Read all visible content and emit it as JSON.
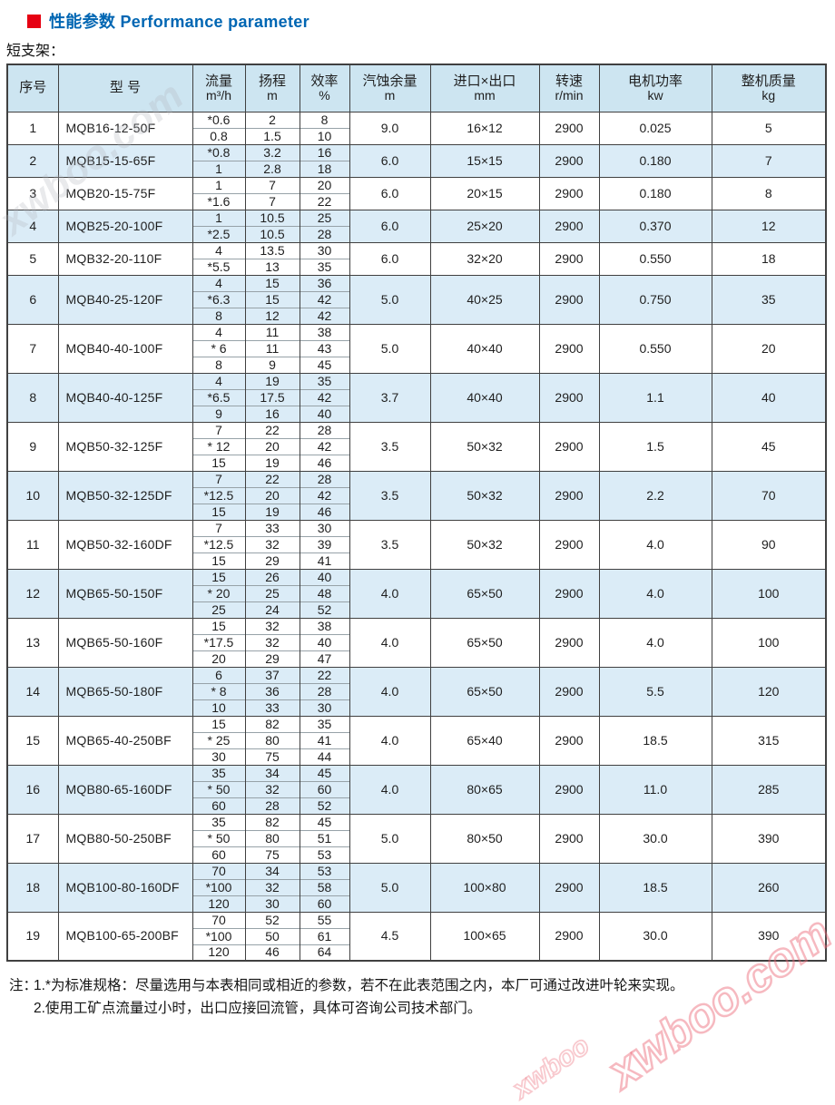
{
  "page": {
    "title": "性能参数 Performance parameter",
    "subtitle": "短支架："
  },
  "colors": {
    "title_blue": "#0066b3",
    "bullet_red": "#e60012",
    "header_bg": "#cde5f1",
    "stripe_blue": "#dbecf7",
    "border_dark": "#404040"
  },
  "watermark": {
    "text": "xwboo.com",
    "text_short": "xwboo"
  },
  "table": {
    "headers": [
      {
        "key": "no",
        "label": "序号",
        "unit": ""
      },
      {
        "key": "model",
        "label": "型  号",
        "unit": ""
      },
      {
        "key": "flow",
        "label": "流量",
        "unit": "m³/h"
      },
      {
        "key": "head",
        "label": "扬程",
        "unit": "m"
      },
      {
        "key": "eff",
        "label": "效率",
        "unit": "%"
      },
      {
        "key": "npsh",
        "label": "汽蚀余量",
        "unit": "m"
      },
      {
        "key": "ports",
        "label": "进口×出口",
        "unit": "mm"
      },
      {
        "key": "speed",
        "label": "转速",
        "unit": "r/min"
      },
      {
        "key": "power",
        "label": "电机功率",
        "unit": "kw"
      },
      {
        "key": "weight",
        "label": "整机质量",
        "unit": "kg"
      }
    ],
    "rows": [
      {
        "no": "1",
        "model": "MQB16-12-50F",
        "flow": [
          "*0.6",
          "0.8"
        ],
        "head": [
          "2",
          "1.5"
        ],
        "eff": [
          "8",
          "10"
        ],
        "npsh": "9.0",
        "ports": "16×12",
        "speed": "2900",
        "power": "0.025",
        "weight": "5"
      },
      {
        "no": "2",
        "model": "MQB15-15-65F",
        "flow": [
          "*0.8",
          "1"
        ],
        "head": [
          "3.2",
          "2.8"
        ],
        "eff": [
          "16",
          "18"
        ],
        "npsh": "6.0",
        "ports": "15×15",
        "speed": "2900",
        "power": "0.180",
        "weight": "7"
      },
      {
        "no": "3",
        "model": "MQB20-15-75F",
        "flow": [
          "1",
          "*1.6"
        ],
        "head": [
          "7",
          "7"
        ],
        "eff": [
          "20",
          "22"
        ],
        "npsh": "6.0",
        "ports": "20×15",
        "speed": "2900",
        "power": "0.180",
        "weight": "8"
      },
      {
        "no": "4",
        "model": "MQB25-20-100F",
        "flow": [
          "1",
          "*2.5"
        ],
        "head": [
          "10.5",
          "10.5"
        ],
        "eff": [
          "25",
          "28"
        ],
        "npsh": "6.0",
        "ports": "25×20",
        "speed": "2900",
        "power": "0.370",
        "weight": "12"
      },
      {
        "no": "5",
        "model": "MQB32-20-110F",
        "flow": [
          "4",
          "*5.5"
        ],
        "head": [
          "13.5",
          "13"
        ],
        "eff": [
          "30",
          "35"
        ],
        "npsh": "6.0",
        "ports": "32×20",
        "speed": "2900",
        "power": "0.550",
        "weight": "18"
      },
      {
        "no": "6",
        "model": "MQB40-25-120F",
        "flow": [
          "4",
          "*6.3",
          "8"
        ],
        "head": [
          "15",
          "15",
          "12"
        ],
        "eff": [
          "36",
          "42",
          "42"
        ],
        "npsh": "5.0",
        "ports": "40×25",
        "speed": "2900",
        "power": "0.750",
        "weight": "35"
      },
      {
        "no": "7",
        "model": "MQB40-40-100F",
        "flow": [
          "4",
          "* 6",
          "8"
        ],
        "head": [
          "11",
          "11",
          "9"
        ],
        "eff": [
          "38",
          "43",
          "45"
        ],
        "npsh": "5.0",
        "ports": "40×40",
        "speed": "2900",
        "power": "0.550",
        "weight": "20"
      },
      {
        "no": "8",
        "model": "MQB40-40-125F",
        "flow": [
          "4",
          "*6.5",
          "9"
        ],
        "head": [
          "19",
          "17.5",
          "16"
        ],
        "eff": [
          "35",
          "42",
          "40"
        ],
        "npsh": "3.7",
        "ports": "40×40",
        "speed": "2900",
        "power": "1.1",
        "weight": "40"
      },
      {
        "no": "9",
        "model": "MQB50-32-125F",
        "flow": [
          "7",
          "* 12",
          "15"
        ],
        "head": [
          "22",
          "20",
          "19"
        ],
        "eff": [
          "28",
          "42",
          "46"
        ],
        "npsh": "3.5",
        "ports": "50×32",
        "speed": "2900",
        "power": "1.5",
        "weight": "45"
      },
      {
        "no": "10",
        "model": "MQB50-32-125DF",
        "flow": [
          "7",
          "*12.5",
          "15"
        ],
        "head": [
          "22",
          "20",
          "19"
        ],
        "eff": [
          "28",
          "42",
          "46"
        ],
        "npsh": "3.5",
        "ports": "50×32",
        "speed": "2900",
        "power": "2.2",
        "weight": "70"
      },
      {
        "no": "11",
        "model": "MQB50-32-160DF",
        "flow": [
          "7",
          "*12.5",
          "15"
        ],
        "head": [
          "33",
          "32",
          "29"
        ],
        "eff": [
          "30",
          "39",
          "41"
        ],
        "npsh": "3.5",
        "ports": "50×32",
        "speed": "2900",
        "power": "4.0",
        "weight": "90"
      },
      {
        "no": "12",
        "model": "MQB65-50-150F",
        "flow": [
          "15",
          "* 20",
          "25"
        ],
        "head": [
          "26",
          "25",
          "24"
        ],
        "eff": [
          "40",
          "48",
          "52"
        ],
        "npsh": "4.0",
        "ports": "65×50",
        "speed": "2900",
        "power": "4.0",
        "weight": "100"
      },
      {
        "no": "13",
        "model": "MQB65-50-160F",
        "flow": [
          "15",
          "*17.5",
          "20"
        ],
        "head": [
          "32",
          "32",
          "29"
        ],
        "eff": [
          "38",
          "40",
          "47"
        ],
        "npsh": "4.0",
        "ports": "65×50",
        "speed": "2900",
        "power": "4.0",
        "weight": "100"
      },
      {
        "no": "14",
        "model": "MQB65-50-180F",
        "flow": [
          "6",
          "* 8",
          "10"
        ],
        "head": [
          "37",
          "36",
          "33"
        ],
        "eff": [
          "22",
          "28",
          "30"
        ],
        "npsh": "4.0",
        "ports": "65×50",
        "speed": "2900",
        "power": "5.5",
        "weight": "120"
      },
      {
        "no": "15",
        "model": "MQB65-40-250BF",
        "flow": [
          "15",
          "* 25",
          "30"
        ],
        "head": [
          "82",
          "80",
          "75"
        ],
        "eff": [
          "35",
          "41",
          "44"
        ],
        "npsh": "4.0",
        "ports": "65×40",
        "speed": "2900",
        "power": "18.5",
        "weight": "315"
      },
      {
        "no": "16",
        "model": "MQB80-65-160DF",
        "flow": [
          "35",
          "* 50",
          "60"
        ],
        "head": [
          "34",
          "32",
          "28"
        ],
        "eff": [
          "45",
          "60",
          "52"
        ],
        "npsh": "4.0",
        "ports": "80×65",
        "speed": "2900",
        "power": "11.0",
        "weight": "285"
      },
      {
        "no": "17",
        "model": "MQB80-50-250BF",
        "flow": [
          "35",
          "* 50",
          "60"
        ],
        "head": [
          "82",
          "80",
          "75"
        ],
        "eff": [
          "45",
          "51",
          "53"
        ],
        "npsh": "5.0",
        "ports": "80×50",
        "speed": "2900",
        "power": "30.0",
        "weight": "390"
      },
      {
        "no": "18",
        "model": "MQB100-80-160DF",
        "flow": [
          "70",
          "*100",
          "120"
        ],
        "head": [
          "34",
          "32",
          "30"
        ],
        "eff": [
          "53",
          "58",
          "60"
        ],
        "npsh": "5.0",
        "ports": "100×80",
        "speed": "2900",
        "power": "18.5",
        "weight": "260"
      },
      {
        "no": "19",
        "model": "MQB100-65-200BF",
        "flow": [
          "70",
          "*100",
          "120"
        ],
        "head": [
          "52",
          "50",
          "46"
        ],
        "eff": [
          "55",
          "61",
          "64"
        ],
        "npsh": "4.5",
        "ports": "100×65",
        "speed": "2900",
        "power": "30.0",
        "weight": "390"
      }
    ]
  },
  "notes": {
    "prefix": "注：",
    "items": [
      "1.*为标准规格：尽量选用与本表相同或相近的参数，若不在此表范围之内，本厂可通过改进叶轮来实现。",
      "2.使用工矿点流量过小时，出口应接回流管，具体可咨询公司技术部门。"
    ]
  }
}
